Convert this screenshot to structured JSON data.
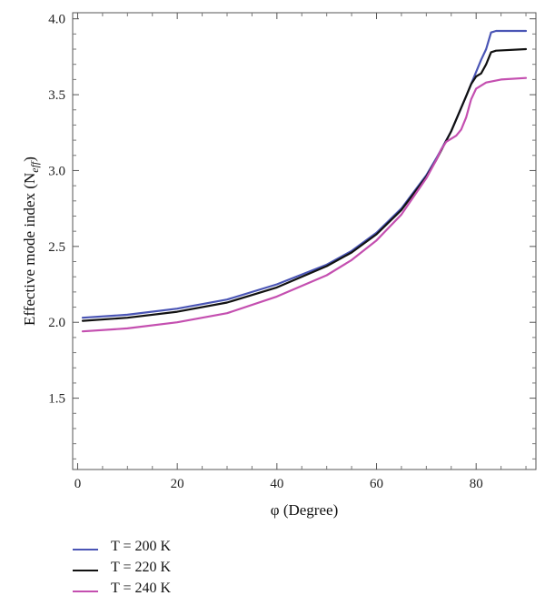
{
  "chart_data": {
    "type": "line",
    "title": "",
    "xlabel": "φ (Degree)",
    "ylabel_main": "Effective mode index (N",
    "ylabel_sub": "eff",
    "ylabel_close": ")",
    "xlim": [
      -1,
      92
    ],
    "ylim": [
      1.03,
      4.04
    ],
    "xticks": [
      0,
      20,
      40,
      60,
      80
    ],
    "xtick_labels": [
      "0",
      "20",
      "40",
      "60",
      "80"
    ],
    "yticks": [
      1.5,
      2.0,
      2.5,
      3.0,
      3.5,
      4.0
    ],
    "ytick_labels": [
      "1.5",
      "2.0",
      "2.5",
      "3.0",
      "3.5",
      "4.0"
    ],
    "grid": false,
    "legend_position": "bottom-left-below",
    "series": [
      {
        "name": "T = 200 K",
        "color": "#4a55b5",
        "x": [
          1,
          10,
          20,
          30,
          40,
          50,
          55,
          60,
          65,
          70,
          72,
          75,
          78,
          80,
          81,
          82,
          83,
          84,
          90
        ],
        "y": [
          2.03,
          2.05,
          2.09,
          2.15,
          2.25,
          2.38,
          2.47,
          2.59,
          2.75,
          2.97,
          3.08,
          3.26,
          3.49,
          3.65,
          3.73,
          3.8,
          3.91,
          3.92,
          3.92
        ]
      },
      {
        "name": "T = 220 K",
        "color": "#111111",
        "x": [
          1,
          10,
          20,
          30,
          40,
          50,
          55,
          60,
          65,
          70,
          72,
          75,
          78,
          79,
          80,
          81,
          82,
          83,
          84,
          90
        ],
        "y": [
          2.01,
          2.03,
          2.07,
          2.13,
          2.23,
          2.37,
          2.46,
          2.58,
          2.74,
          2.96,
          3.07,
          3.26,
          3.49,
          3.57,
          3.62,
          3.64,
          3.7,
          3.78,
          3.79,
          3.8
        ]
      },
      {
        "name": "T = 240 K",
        "color": "#c44fb0",
        "x": [
          1,
          10,
          20,
          30,
          40,
          50,
          55,
          60,
          65,
          70,
          72,
          73,
          74,
          75,
          76,
          77,
          78,
          79,
          80,
          82,
          85,
          90
        ],
        "y": [
          1.94,
          1.96,
          2.0,
          2.06,
          2.17,
          2.31,
          2.41,
          2.54,
          2.71,
          2.95,
          3.07,
          3.14,
          3.19,
          3.21,
          3.23,
          3.27,
          3.35,
          3.47,
          3.54,
          3.58,
          3.6,
          3.61
        ]
      }
    ]
  }
}
